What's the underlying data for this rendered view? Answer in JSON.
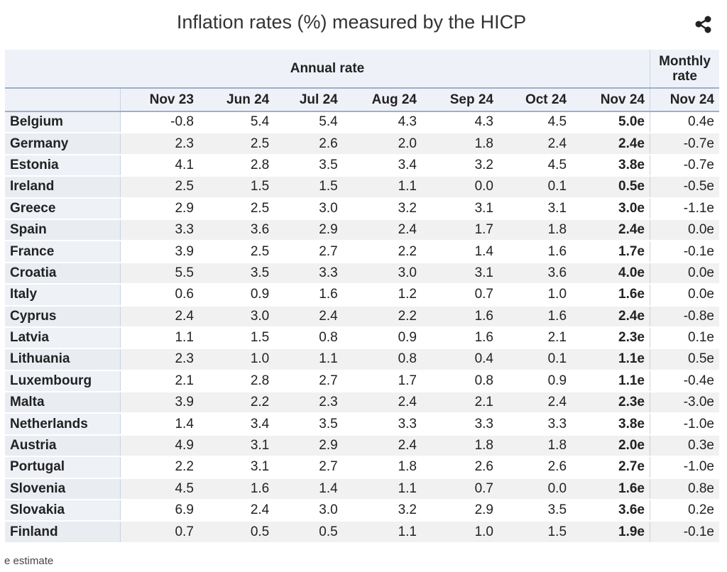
{
  "title": "Inflation rates (%) measured by the HICP",
  "footnote": "e estimate",
  "chart_data": {
    "type": "table",
    "title": "Inflation rates (%) measured by the HICP",
    "group_headers": [
      "Annual rate",
      "Monthly rate"
    ],
    "columns": [
      "Nov 23",
      "Jun 24",
      "Jul 24",
      "Aug 24",
      "Sep 24",
      "Oct 24",
      "Nov 24",
      "Nov 24"
    ],
    "rows": [
      {
        "country": "Belgium",
        "values": [
          "-0.8",
          "5.4",
          "5.4",
          "4.3",
          "4.3",
          "4.5",
          "5.0e",
          "0.4e"
        ]
      },
      {
        "country": "Germany",
        "values": [
          "2.3",
          "2.5",
          "2.6",
          "2.0",
          "1.8",
          "2.4",
          "2.4e",
          "-0.7e"
        ]
      },
      {
        "country": "Estonia",
        "values": [
          "4.1",
          "2.8",
          "3.5",
          "3.4",
          "3.2",
          "4.5",
          "3.8e",
          "-0.7e"
        ]
      },
      {
        "country": "Ireland",
        "values": [
          "2.5",
          "1.5",
          "1.5",
          "1.1",
          "0.0",
          "0.1",
          "0.5e",
          "-0.5e"
        ]
      },
      {
        "country": "Greece",
        "values": [
          "2.9",
          "2.5",
          "3.0",
          "3.2",
          "3.1",
          "3.1",
          "3.0e",
          "-1.1e"
        ]
      },
      {
        "country": "Spain",
        "values": [
          "3.3",
          "3.6",
          "2.9",
          "2.4",
          "1.7",
          "1.8",
          "2.4e",
          "0.0e"
        ]
      },
      {
        "country": "France",
        "values": [
          "3.9",
          "2.5",
          "2.7",
          "2.2",
          "1.4",
          "1.6",
          "1.7e",
          "-0.1e"
        ]
      },
      {
        "country": "Croatia",
        "values": [
          "5.5",
          "3.5",
          "3.3",
          "3.0",
          "3.1",
          "3.6",
          "4.0e",
          "0.0e"
        ]
      },
      {
        "country": "Italy",
        "values": [
          "0.6",
          "0.9",
          "1.6",
          "1.2",
          "0.7",
          "1.0",
          "1.6e",
          "0.0e"
        ]
      },
      {
        "country": "Cyprus",
        "values": [
          "2.4",
          "3.0",
          "2.4",
          "2.2",
          "1.6",
          "1.6",
          "2.4e",
          "-0.8e"
        ]
      },
      {
        "country": "Latvia",
        "values": [
          "1.1",
          "1.5",
          "0.8",
          "0.9",
          "1.6",
          "2.1",
          "2.3e",
          "0.1e"
        ]
      },
      {
        "country": "Lithuania",
        "values": [
          "2.3",
          "1.0",
          "1.1",
          "0.8",
          "0.4",
          "0.1",
          "1.1e",
          "0.5e"
        ]
      },
      {
        "country": "Luxembourg",
        "values": [
          "2.1",
          "2.8",
          "2.7",
          "1.7",
          "0.8",
          "0.9",
          "1.1e",
          "-0.4e"
        ]
      },
      {
        "country": "Malta",
        "values": [
          "3.9",
          "2.2",
          "2.3",
          "2.4",
          "2.1",
          "2.4",
          "2.3e",
          "-3.0e"
        ]
      },
      {
        "country": "Netherlands",
        "values": [
          "1.4",
          "3.4",
          "3.5",
          "3.3",
          "3.3",
          "3.3",
          "3.8e",
          "-1.0e"
        ]
      },
      {
        "country": "Austria",
        "values": [
          "4.9",
          "3.1",
          "2.9",
          "2.4",
          "1.8",
          "1.8",
          "2.0e",
          "0.3e"
        ]
      },
      {
        "country": "Portugal",
        "values": [
          "2.2",
          "3.1",
          "2.7",
          "1.8",
          "2.6",
          "2.6",
          "2.7e",
          "-1.0e"
        ]
      },
      {
        "country": "Slovenia",
        "values": [
          "4.5",
          "1.6",
          "1.4",
          "1.1",
          "0.7",
          "0.0",
          "1.6e",
          "0.8e"
        ]
      },
      {
        "country": "Slovakia",
        "values": [
          "6.9",
          "2.4",
          "3.0",
          "3.2",
          "2.9",
          "3.5",
          "3.6e",
          "0.2e"
        ]
      },
      {
        "country": "Finland",
        "values": [
          "0.7",
          "0.5",
          "0.5",
          "1.1",
          "1.0",
          "1.5",
          "1.9e",
          "-0.1e"
        ]
      }
    ]
  },
  "icons": {
    "share": "share-icon"
  }
}
